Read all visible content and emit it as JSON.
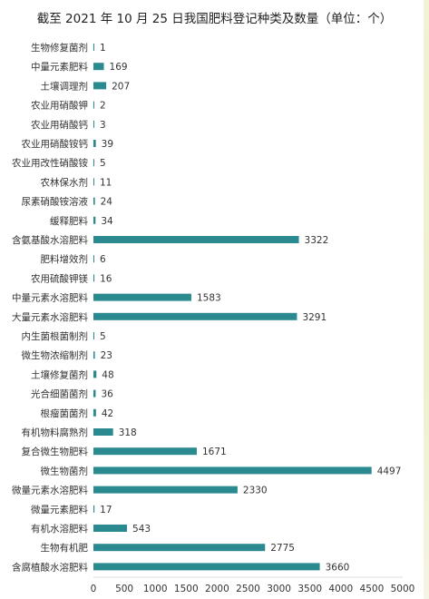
{
  "chart_data": {
    "type": "bar",
    "orientation": "horizontal",
    "title": "截至 2021 年 10 月 25 日我国肥料登记种类及数量（单位：个）",
    "categories": [
      "生物修复菌剂",
      "中量元素肥料",
      "土壤调理剂",
      "农业用硝酸钾",
      "农业用硝酸钙",
      "农业用硝酸铵钙",
      "农业用改性硝酸铵",
      "农林保水剂",
      "尿素硝酸铵溶液",
      "缓释肥料",
      "含氨基酸水溶肥料",
      "肥料增效剂",
      "农用硫酸钾镁",
      "中量元素水溶肥料",
      "大量元素水溶肥料",
      "内生菌根菌制剂",
      "微生物浓缩制剂",
      "土壤修复菌剂",
      "光合细菌菌剂",
      "根瘤菌菌剂",
      "有机物料腐熟剂",
      "复合微生物肥料",
      "微生物菌剂",
      "微量元素水溶肥料",
      "微量元素肥料",
      "有机水溶肥料",
      "生物有机肥",
      "含腐植酸水溶肥料"
    ],
    "values": [
      1,
      169,
      207,
      2,
      3,
      39,
      5,
      11,
      24,
      34,
      3322,
      6,
      16,
      1583,
      3291,
      5,
      23,
      48,
      36,
      42,
      318,
      1671,
      4497,
      2330,
      17,
      543,
      2775,
      3660
    ],
    "xlim": [
      0,
      5000
    ],
    "xticks": [
      0,
      500,
      1000,
      1500,
      2000,
      2500,
      3000,
      3500,
      4000,
      4500,
      5000
    ],
    "bar_color": "#2b8a8f",
    "grid": false,
    "legend": "none"
  }
}
